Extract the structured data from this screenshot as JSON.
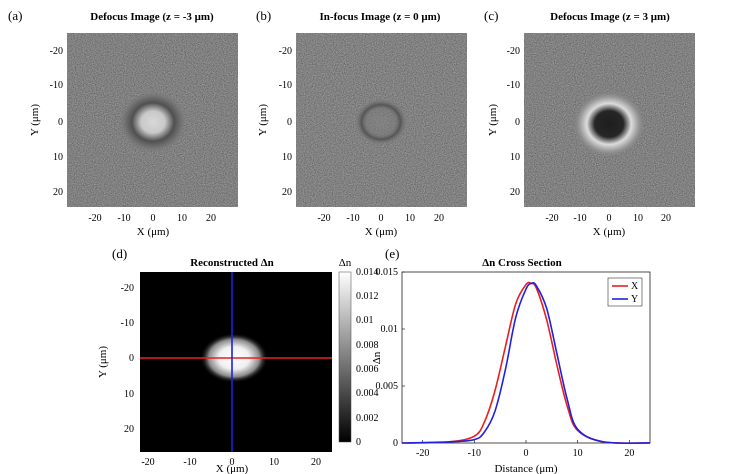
{
  "figure": {
    "panels": [
      {
        "label": "(a)",
        "title": "Defocus Image (z = -3  μm)",
        "xlabel": "X (μm)",
        "ylabel": "Y (μm)",
        "xticks": [
          "-20",
          "-10",
          "0",
          "10",
          "20"
        ],
        "yticks": [
          "-20",
          "-10",
          "0",
          "10",
          "20"
        ],
        "appearance": "bright center, dark ring"
      },
      {
        "label": "(b)",
        "title": "In-focus Image (z = 0  μm)",
        "xlabel": "X (μm)",
        "ylabel": "Y (μm)",
        "xticks": [
          "-20",
          "-10",
          "0",
          "10",
          "20"
        ],
        "yticks": [
          "-20",
          "-10",
          "0",
          "10",
          "20"
        ],
        "appearance": "faint ring"
      },
      {
        "label": "(c)",
        "title": "Defocus Image (z = 3  μm)",
        "xlabel": "X (μm)",
        "ylabel": "Y (μm)",
        "xticks": [
          "-20",
          "-10",
          "0",
          "10",
          "20"
        ],
        "yticks": [
          "-20",
          "-10",
          "0",
          "10",
          "20"
        ],
        "appearance": "dark center, bright ring"
      }
    ],
    "reconstruction": {
      "label": "(d)",
      "title": "Reconstructed Δn",
      "xlabel": "X (μm)",
      "ylabel": "Y (μm)",
      "xticks": [
        "-20",
        "-10",
        "0",
        "10",
        "20"
      ],
      "yticks": [
        "-20",
        "-10",
        "0",
        "10",
        "20"
      ],
      "colorbar_label": "Δn",
      "colorbar_ticks": [
        "0.014",
        "0.012",
        "0.01",
        "0.008",
        "0.006",
        "0.004",
        "0.002",
        "0"
      ],
      "crosshair_colors": {
        "horizontal": "#e8201c",
        "vertical": "#2020e0"
      }
    }
  },
  "chart_data": {
    "type": "line",
    "label": "(e)",
    "title": "Δn Cross Section",
    "xlabel": "Distance (μm)",
    "ylabel": "Δn",
    "xlim": [
      -24,
      24
    ],
    "ylim": [
      0,
      0.015
    ],
    "xticks": [
      "-20",
      "-10",
      "0",
      "10",
      "20"
    ],
    "yticks": [
      "0",
      "0.005",
      "0.01",
      "0.015"
    ],
    "legend_position": "top-right",
    "series": [
      {
        "name": "X",
        "color": "#e8201c",
        "x": [
          -24,
          -15,
          -10,
          -8,
          -6,
          -4,
          -2,
          0,
          1,
          2,
          4,
          6,
          8,
          10,
          15,
          24
        ],
        "y": [
          0,
          0.0001,
          0.0006,
          0.0019,
          0.0046,
          0.0084,
          0.0122,
          0.0139,
          0.014,
          0.0136,
          0.0108,
          0.0068,
          0.0032,
          0.0011,
          0.0001,
          0
        ]
      },
      {
        "name": "Y",
        "color": "#2020e0",
        "x": [
          -24,
          -15,
          -10,
          -8,
          -6,
          -4,
          -2,
          0,
          1,
          2,
          4,
          6,
          8,
          10,
          15,
          24
        ],
        "y": [
          0,
          0.0001,
          0.0003,
          0.001,
          0.0028,
          0.0064,
          0.011,
          0.0135,
          0.014,
          0.0138,
          0.0118,
          0.0078,
          0.0038,
          0.0012,
          0.0001,
          0
        ]
      }
    ]
  }
}
